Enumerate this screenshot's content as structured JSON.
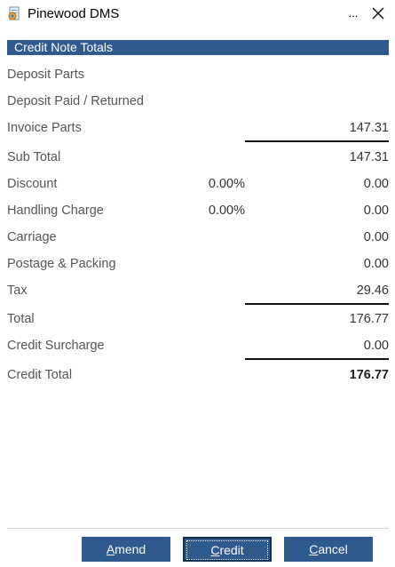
{
  "window": {
    "title": "Pinewood DMS",
    "more_glyph": "...",
    "close_icon": "close-icon"
  },
  "section": {
    "title": "Credit Note Totals"
  },
  "rows": [
    {
      "label": "Deposit Parts",
      "percent": "",
      "value": ""
    },
    {
      "label": "Deposit Paid / Returned",
      "percent": "",
      "value": ""
    },
    {
      "label": "Invoice Parts",
      "percent": "",
      "value": "147.31"
    },
    {
      "label": "Sub Total",
      "percent": "",
      "value": "147.31"
    },
    {
      "label": "Discount",
      "percent": "0.00%",
      "value": "0.00"
    },
    {
      "label": "Handling Charge",
      "percent": "0.00%",
      "value": "0.00"
    },
    {
      "label": "Carriage",
      "percent": "",
      "value": "0.00"
    },
    {
      "label": "Postage & Packing",
      "percent": "",
      "value": "0.00"
    },
    {
      "label": "Tax",
      "percent": "",
      "value": "29.46"
    },
    {
      "label": "Total",
      "percent": "",
      "value": "176.77"
    },
    {
      "label": "Credit Surcharge",
      "percent": "",
      "value": "0.00"
    },
    {
      "label": "Credit Total",
      "percent": "",
      "value": "176.77"
    }
  ],
  "buttons": {
    "amend": {
      "first": "A",
      "rest": "mend"
    },
    "credit": {
      "first": "C",
      "rest": "redit"
    },
    "cancel": {
      "first": "C",
      "rest": "ancel"
    }
  },
  "colors": {
    "accent": "#2e5a8e",
    "rule": "#111111"
  }
}
